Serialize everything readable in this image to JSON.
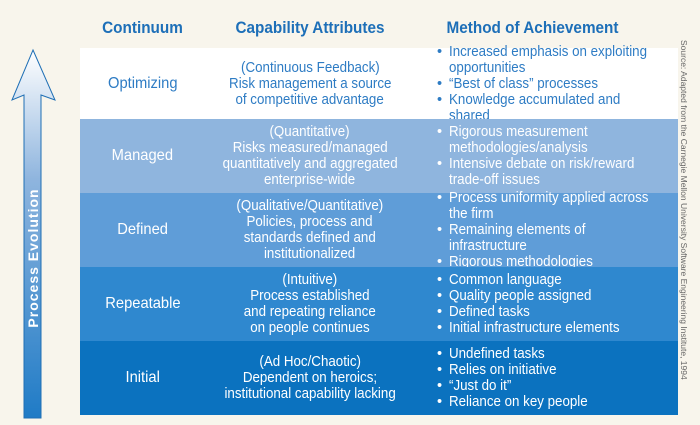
{
  "headers": {
    "continuum": "Continuum",
    "capability": "Capability Attributes",
    "method": "Method of Achievement"
  },
  "arrow_label": "Process Evolution",
  "source": "Source: Adapted from the Carnegie Mellon University Software Engineering Institute, 1994",
  "rows": [
    {
      "level": "Optimizing",
      "bg": "#ffffff",
      "fg": "#2e7cc4",
      "capability": [
        "(Continuous Feedback)",
        "Risk management a source",
        "of competitive advantage"
      ],
      "methods": [
        "Increased emphasis on exploiting opportunities",
        "“Best of class” processes",
        "Knowledge accumulated and shared"
      ]
    },
    {
      "level": "Managed",
      "bg": "#8fb5de",
      "fg": "#ffffff",
      "capability": [
        "(Quantitative)",
        "Risks measured/managed",
        "quantitatively and aggregated",
        "enterprise-wide"
      ],
      "methods": [
        "Rigorous measurement methodologies/analysis",
        "Intensive debate on risk/reward trade-off issues"
      ]
    },
    {
      "level": "Defined",
      "bg": "#5f9dd8",
      "fg": "#ffffff",
      "capability": [
        "(Qualitative/Quantitative)",
        "Policies, process and",
        "standards defined and",
        "institutionalized"
      ],
      "methods": [
        "Process uniformity applied across the firm",
        "Remaining elements of infrastructure",
        "Rigorous methodologies"
      ]
    },
    {
      "level": "Repeatable",
      "bg": "#2f88cf",
      "fg": "#ffffff",
      "capability": [
        "(Intuitive)",
        "Process established",
        "and repeating reliance",
        "on people continues"
      ],
      "methods": [
        "Common language",
        "Quality people assigned",
        "Defined tasks",
        "Initial infrastructure elements"
      ]
    },
    {
      "level": "Initial",
      "bg": "#0b72bf",
      "fg": "#ffffff",
      "capability": [
        "(Ad Hoc/Chaotic)",
        "Dependent on heroics;",
        "institutional capability lacking"
      ],
      "methods": [
        "Undefined tasks",
        "Relies on initiative",
        "“Just do it”",
        "Reliance on key people"
      ]
    }
  ]
}
